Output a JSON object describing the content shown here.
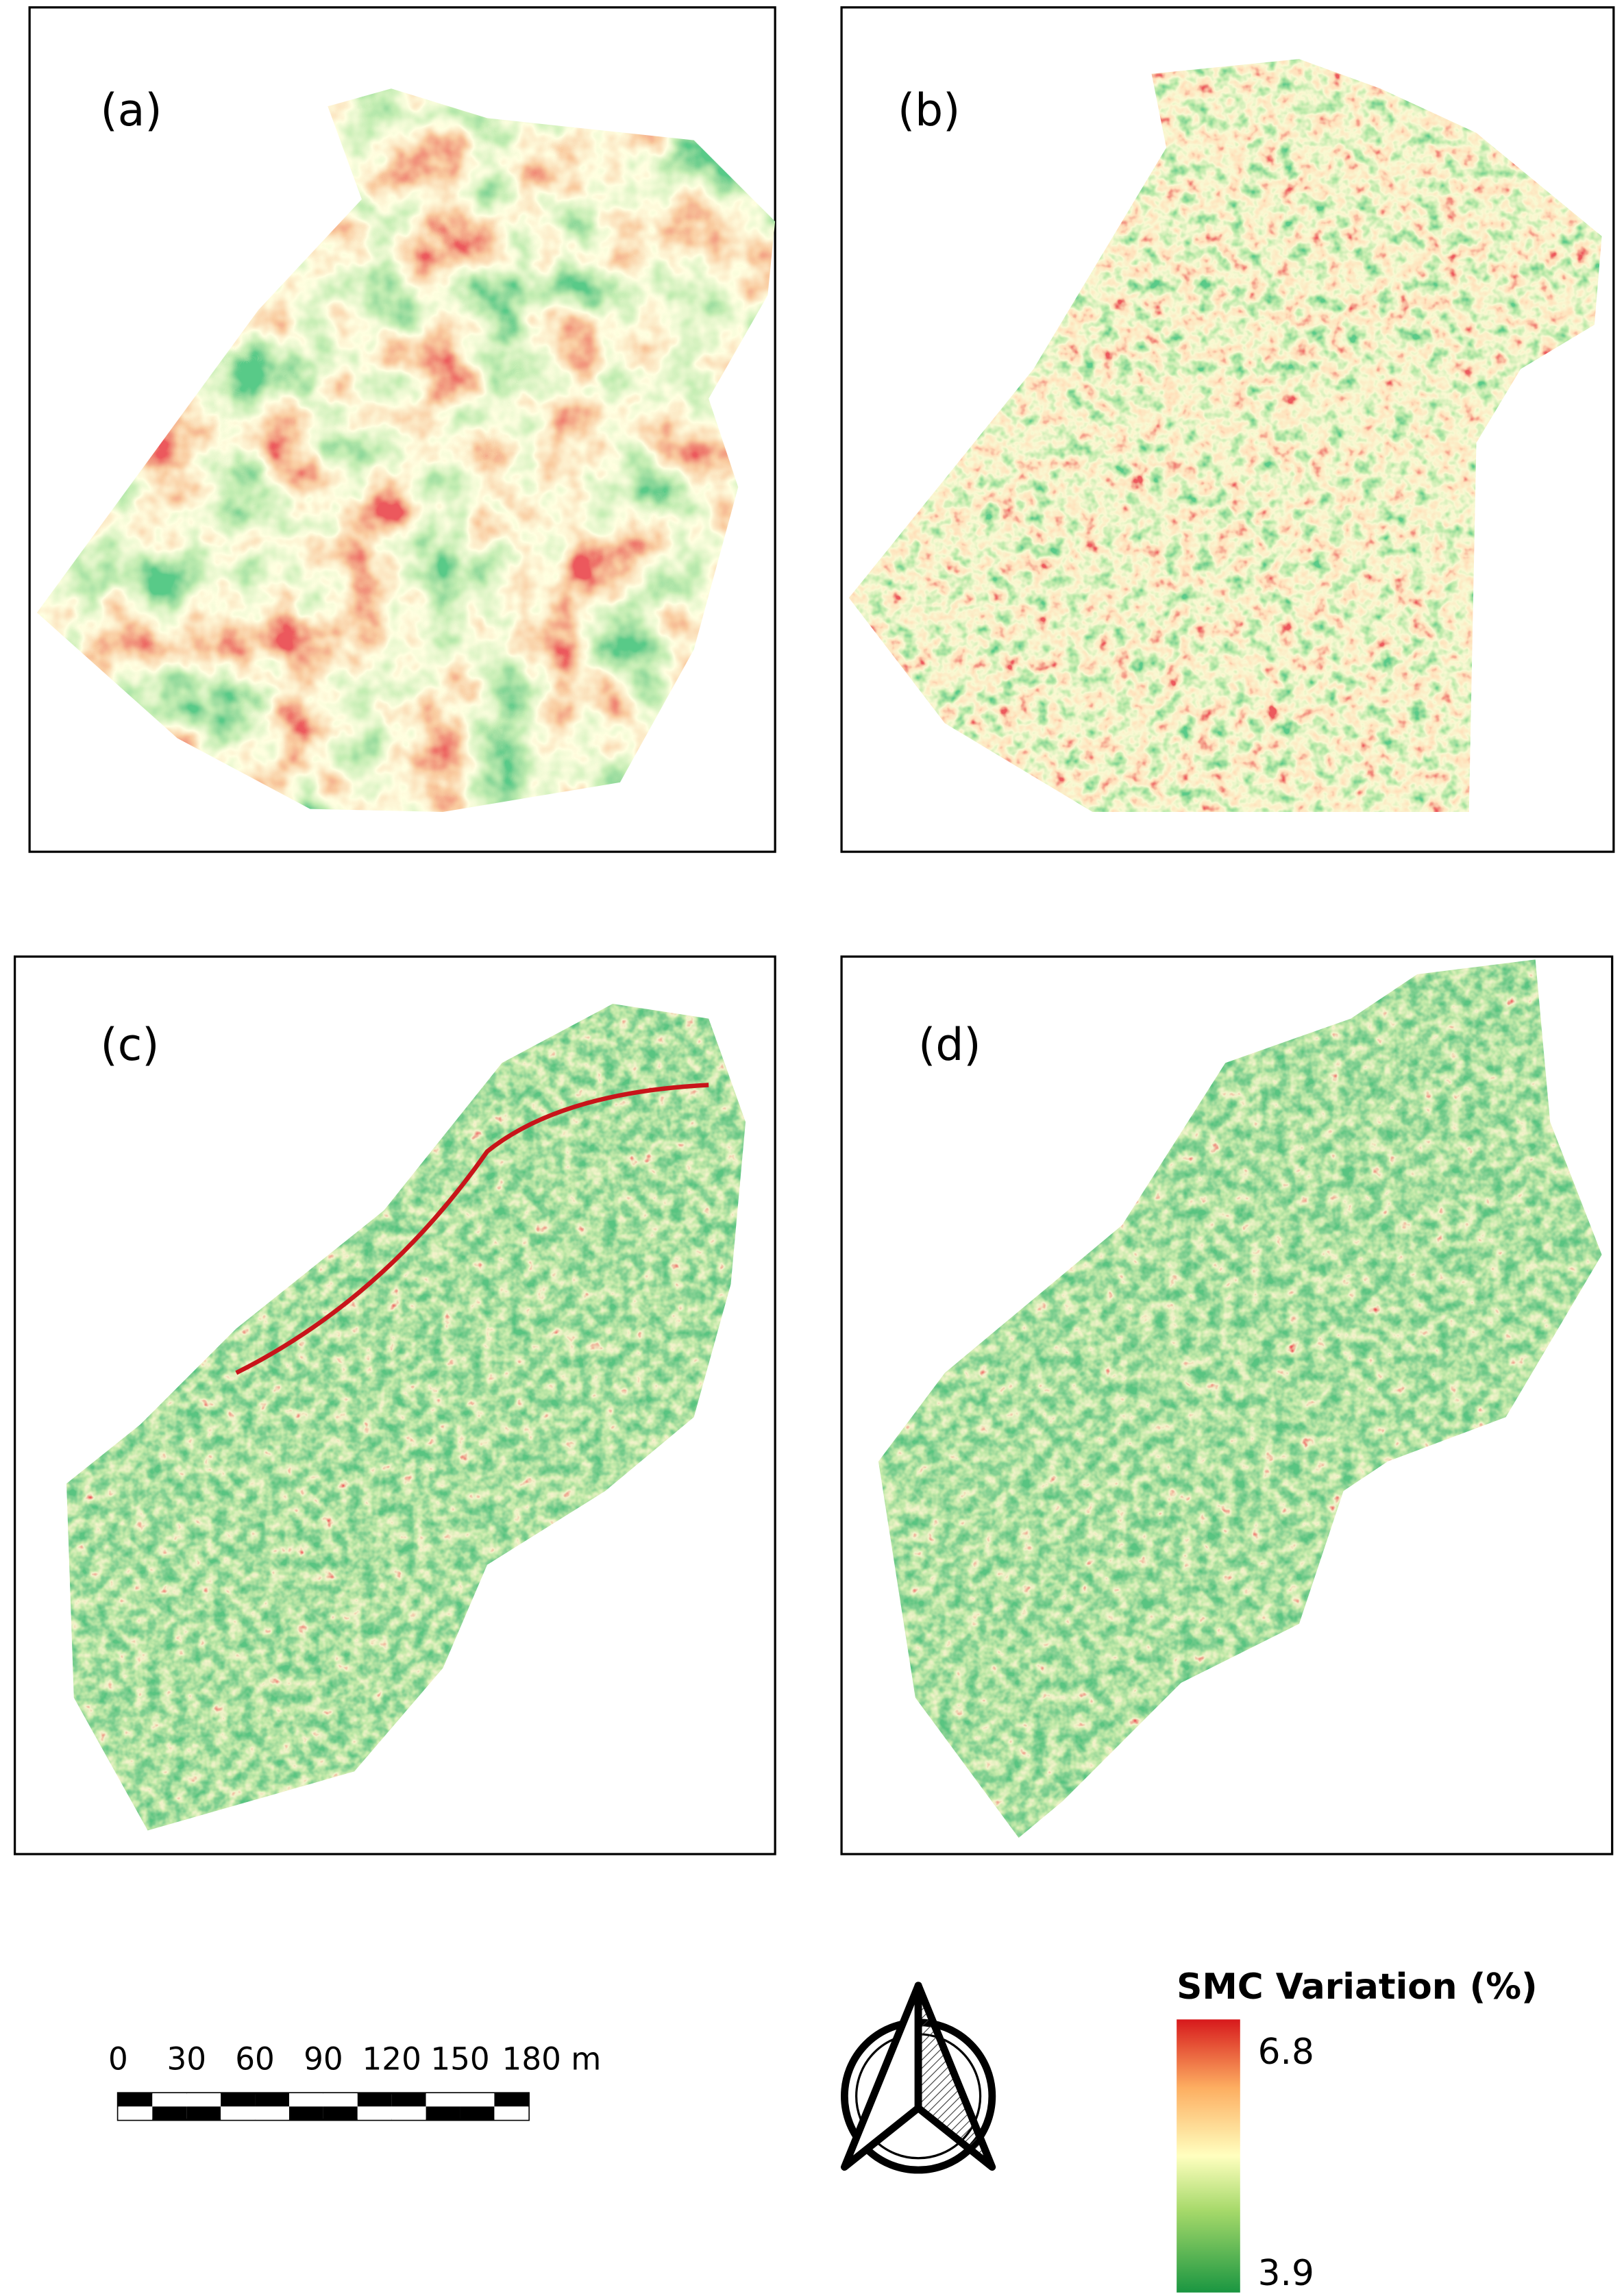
{
  "panels": [
    {
      "label": "(a)"
    },
    {
      "label": "(b)"
    },
    {
      "label": "(c)"
    },
    {
      "label": "(d)"
    }
  ],
  "scale_bar": {
    "labels": [
      0,
      30,
      60,
      90,
      120,
      150,
      "180 m"
    ]
  },
  "legend": {
    "title": "SMC Variation (%)",
    "max": 6.8,
    "min": 3.9
  }
}
